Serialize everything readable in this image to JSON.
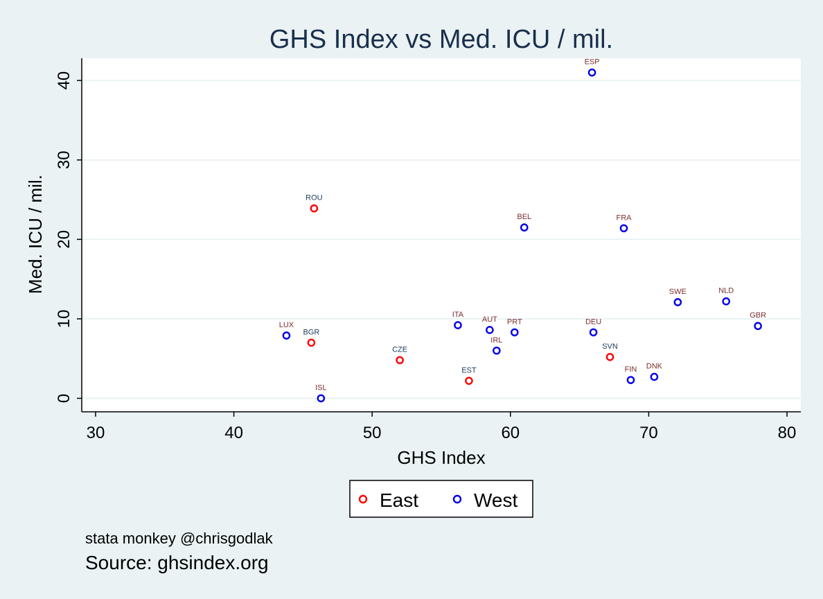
{
  "chart_data": {
    "type": "scatter",
    "title": "GHS Index vs Med. ICU / mil.",
    "xlabel": "GHS Index",
    "ylabel": "Med. ICU / mil.",
    "xlim": [
      29,
      81
    ],
    "ylim": [
      -1.7,
      42.8
    ],
    "xticks": [
      30,
      40,
      50,
      60,
      70,
      80
    ],
    "yticks": [
      0,
      10,
      20,
      30,
      40
    ],
    "grid": true,
    "legend_position": "bottom",
    "series": [
      {
        "name": "East",
        "color": "#ff0000",
        "label_color": "#1f3a5c",
        "points": [
          {
            "label": "ROU",
            "x": 45.8,
            "y": 23.9
          },
          {
            "label": "BGR",
            "x": 45.6,
            "y": 7.0
          },
          {
            "label": "CZE",
            "x": 52.0,
            "y": 4.8
          },
          {
            "label": "EST",
            "x": 57.0,
            "y": 2.2
          },
          {
            "label": "SVN",
            "x": 67.2,
            "y": 5.2
          }
        ]
      },
      {
        "name": "West",
        "color": "#0000ee",
        "label_color": "#7a2e2e",
        "points": [
          {
            "label": "ESP",
            "x": 65.9,
            "y": 41.0
          },
          {
            "label": "BEL",
            "x": 61.0,
            "y": 21.5
          },
          {
            "label": "FRA",
            "x": 68.2,
            "y": 21.4
          },
          {
            "label": "SWE",
            "x": 72.1,
            "y": 12.1
          },
          {
            "label": "NLD",
            "x": 75.6,
            "y": 12.2
          },
          {
            "label": "GBR",
            "x": 77.9,
            "y": 9.1
          },
          {
            "label": "LUX",
            "x": 43.8,
            "y": 7.9
          },
          {
            "label": "ITA",
            "x": 56.2,
            "y": 9.2
          },
          {
            "label": "AUT",
            "x": 58.5,
            "y": 8.6
          },
          {
            "label": "PRT",
            "x": 60.3,
            "y": 8.3
          },
          {
            "label": "IRL",
            "x": 59.0,
            "y": 6.0
          },
          {
            "label": "DEU",
            "x": 66.0,
            "y": 8.3
          },
          {
            "label": "FIN",
            "x": 68.7,
            "y": 2.3
          },
          {
            "label": "DNK",
            "x": 70.4,
            "y": 2.7
          },
          {
            "label": "ISL",
            "x": 46.3,
            "y": 0.0
          }
        ]
      }
    ]
  },
  "notes": {
    "line1": "stata monkey @chrisgodlak",
    "line2": "Source: ghsindex.org"
  },
  "colors": {
    "background": "#eaf2f3",
    "plot_background": "#ffffff",
    "grid": "#eaf2f3",
    "title": "#1a2f4d",
    "axis": "#000000"
  }
}
